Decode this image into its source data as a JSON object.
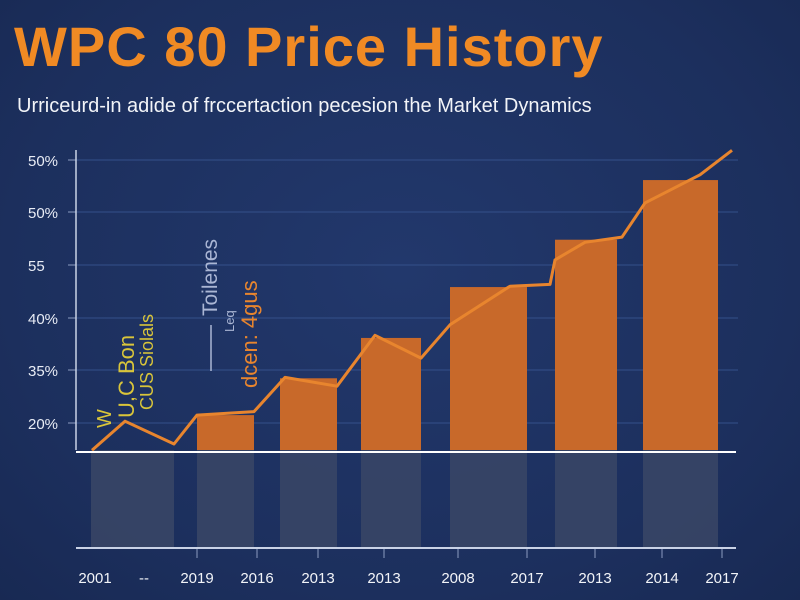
{
  "chart_data": {
    "type": "bar",
    "title": "WPC 80 Price History",
    "subtitle": "Urriceurd-in adide of frccertaction  pecesion the Market Dynamics",
    "y_tick_labels": [
      "50%",
      "50%",
      "55",
      "40%",
      "35%",
      "20%"
    ],
    "categories": [
      "2001",
      "--",
      "2019",
      "2016",
      "2013",
      "2013",
      "2008",
      "2017",
      "2013",
      "2014",
      "2017"
    ],
    "bar_values": [
      20.9,
      25.1,
      29.7,
      35.5,
      40.9,
      47.7
    ],
    "line_values": [
      16.9,
      20.2,
      17.6,
      20.9,
      21.3,
      25.2,
      24.2,
      30.0,
      27.4,
      31.2,
      35.6,
      35.8,
      38.6,
      40.6,
      41.2,
      45.1,
      48.3,
      51.1
    ],
    "ylim": [
      17,
      52
    ],
    "grid": true,
    "annotations": [
      "W",
      "U,C Bon",
      "CUS Siolals",
      "Toilenes",
      "Leq",
      "dcen: 4gus"
    ],
    "colors": {
      "bar": "#c8692a",
      "line": "#e8852e",
      "background": "#1d3161",
      "title": "#f08a24",
      "annotation_yellow": "#d9c53a",
      "annotation_light": "#aab6d4",
      "shadow_bar": "#3a4766"
    }
  }
}
